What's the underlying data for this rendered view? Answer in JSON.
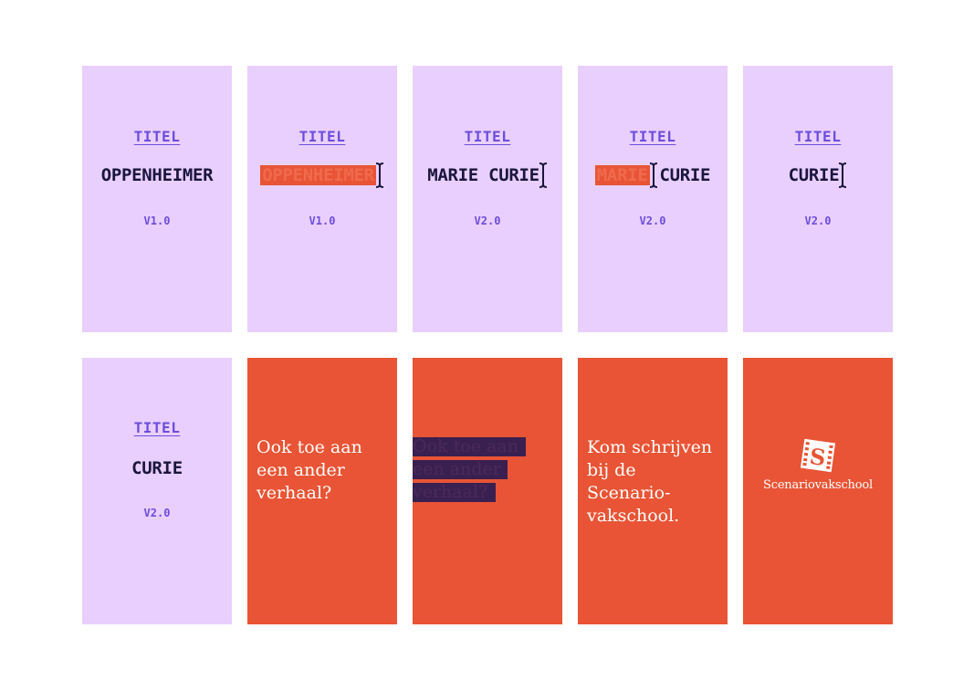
{
  "colors": {
    "lilac": "#e9cffd",
    "orange": "#e85435",
    "purple": "#6d4ddc",
    "navy": "#1a1640"
  },
  "row1": [
    {
      "title": "TITEL",
      "name": "OPPENHEIMER",
      "version": "V1.0"
    },
    {
      "title": "TITEL",
      "name": "OPPENHEIMER",
      "version": "V1.0"
    },
    {
      "title": "TITEL",
      "name": "MARIE CURIE",
      "version": "V2.0"
    },
    {
      "title": "TITEL",
      "name_selected": "MARIE",
      "name_rest": "CURIE",
      "version": "V2.0"
    },
    {
      "title": "TITEL",
      "name": "CURIE",
      "version": "V2.0"
    }
  ],
  "row2": {
    "card1": {
      "title": "TITEL",
      "name": "CURIE",
      "version": "V2.0"
    },
    "card2": {
      "line1": "Ook toe aan",
      "line2": "een ander",
      "line3": "verhaal?"
    },
    "card3": {
      "line1": "Ook toe aan",
      "line2": "een ander",
      "line3": "verhaal?"
    },
    "card4": {
      "line1": "Kom schrijven",
      "line2": "bij de Scenario-",
      "line3": "vakschool."
    },
    "card5": {
      "logo_letter": "S",
      "logo_name": "Scenariovakschool",
      "logo_icon": "film-strip-s-icon"
    }
  }
}
